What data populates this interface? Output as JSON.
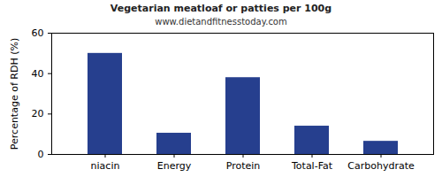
{
  "chart_data": {
    "type": "bar",
    "title": "Vegetarian meatloaf or patties per 100g",
    "subtitle": "www.dietandfitnesstoday.com",
    "y_label": "Percentage of RDH (%)",
    "categories": [
      "niacin",
      "Energy",
      "Protein",
      "Total-Fat",
      "Carbohydrate"
    ],
    "values": [
      50,
      10.5,
      38,
      14,
      6.5
    ],
    "color": "#263f8e",
    "ylim": [
      0,
      60
    ],
    "yticks": [
      0,
      20,
      40,
      60
    ],
    "grid": false
  }
}
